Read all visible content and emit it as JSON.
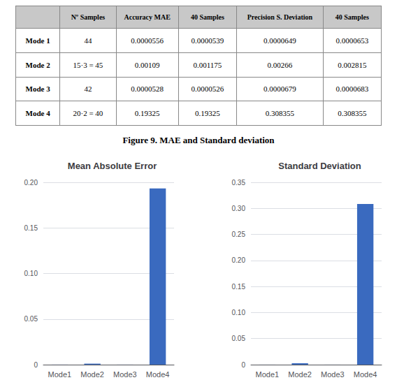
{
  "title": "Figure 9. MAE and Standard deviation",
  "chart_data": [
    {
      "type": "table",
      "headers": [
        "",
        "Nº Samples",
        "Accuracy MAE",
        "40 Samples",
        "Precision S. Deviation",
        "40 Samples"
      ],
      "rows": [
        [
          "Mode 1",
          "44",
          "0.0000556",
          "0.0000539",
          "0.0000649",
          "0.0000653"
        ],
        [
          "Mode 2",
          "15·3 = 45",
          "0.00109",
          "0.001175",
          "0.00266",
          "0.002815"
        ],
        [
          "Mode 3",
          "42",
          "0.0000528",
          "0.0000526",
          "0.0000679",
          "0.0000683"
        ],
        [
          "Mode 4",
          "20·2 = 40",
          "0.19325",
          "0.19325",
          "0.308355",
          "0.308355"
        ]
      ]
    },
    {
      "type": "bar",
      "title": "Mean Absolute Error",
      "categories": [
        "Mode1",
        "Mode2",
        "Mode3",
        "Mode4"
      ],
      "values": [
        5.56e-05,
        0.00109,
        5.28e-05,
        0.19325
      ],
      "color": "#3a6abf",
      "ylim": [
        0,
        0.2
      ],
      "yticks": [
        0,
        0.05,
        {
          "value": 0.1,
          "label": "0.10"
        },
        0.15,
        {
          "value": 0.2,
          "label": "0.20"
        }
      ],
      "grid": true
    },
    {
      "type": "bar",
      "title": "Standard Deviation",
      "categories": [
        "Mode1",
        "Mode2",
        "Mode3",
        "Mode4"
      ],
      "values": [
        6.49e-05,
        0.00266,
        6.79e-05,
        0.308355
      ],
      "color": "#3a6abf",
      "ylim": [
        0,
        0.35
      ],
      "yticks": [
        0,
        0.05,
        {
          "value": 0.1,
          "label": "0.10"
        },
        0.15,
        {
          "value": 0.2,
          "label": "0.20"
        },
        0.25,
        {
          "value": 0.3,
          "label": "0.30"
        },
        0.35
      ],
      "grid": true
    }
  ]
}
